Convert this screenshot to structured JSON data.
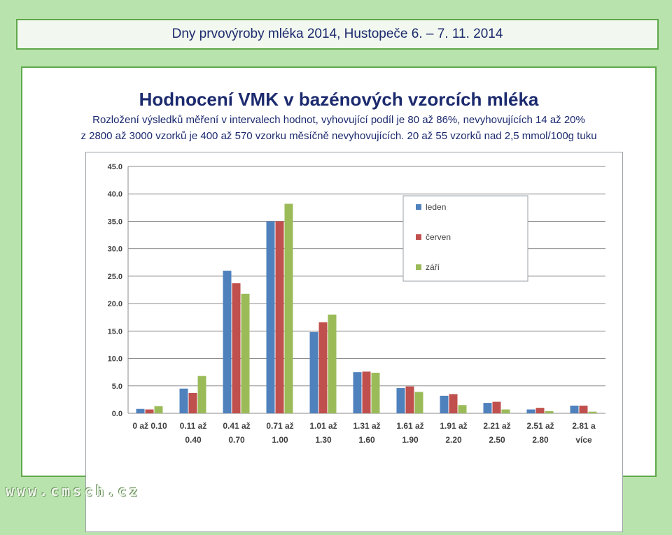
{
  "header": {
    "title": "Dny prvovýroby mléka 2014, Hustopeče  6. – 7. 11. 2014"
  },
  "main": {
    "title": "Hodnocení VMK v bazénových vzorcích mléka",
    "desc_line1": "Rozložení výsledků měření v intervalech hodnot, vyhovující podíl je  80 až 86%, nevyhovujících 14 až 20%",
    "desc_line2": "z 2800 až 3000 vzorků je  400 až 570 vzorku měsíčně nevyhovujících. 20 až 55 vzorků nad 2,5 mmol/100g tuku"
  },
  "footer": {
    "text": "www.cmsch.cz"
  },
  "chart_data": {
    "type": "bar",
    "categories": [
      [
        "0 až 0.10",
        ""
      ],
      [
        "0.11 až",
        "0.40"
      ],
      [
        "0.41 až",
        "0.70"
      ],
      [
        "0.71 až",
        "1.00"
      ],
      [
        "1.01 až",
        "1.30"
      ],
      [
        "1.31 až",
        "1.60"
      ],
      [
        "1.61 až",
        "1.90"
      ],
      [
        "1.91 až",
        "2.20"
      ],
      [
        "2.21 až",
        "2.50"
      ],
      [
        "2.51 až",
        "2.80"
      ],
      [
        "2.81 a",
        "více"
      ]
    ],
    "series": [
      {
        "name": "leden",
        "color": "#4f81bd",
        "values": [
          0.8,
          4.5,
          26.0,
          35.0,
          14.8,
          7.5,
          4.6,
          3.2,
          1.9,
          0.7,
          1.4
        ]
      },
      {
        "name": "červen",
        "color": "#c0504d",
        "values": [
          0.7,
          3.7,
          23.7,
          35.0,
          16.6,
          7.6,
          4.9,
          3.5,
          2.1,
          1.0,
          1.4
        ]
      },
      {
        "name": "září",
        "color": "#9bbb59",
        "values": [
          1.3,
          6.8,
          21.8,
          38.2,
          18.0,
          7.4,
          3.9,
          1.5,
          0.7,
          0.4,
          0.3
        ]
      }
    ],
    "ylim": [
      0,
      45
    ],
    "yticks": [
      "0.0",
      "5.0",
      "10.0",
      "15.0",
      "20.0",
      "25.0",
      "30.0",
      "35.0",
      "40.0",
      "45.0"
    ],
    "grid": true,
    "legend_position": "right"
  }
}
